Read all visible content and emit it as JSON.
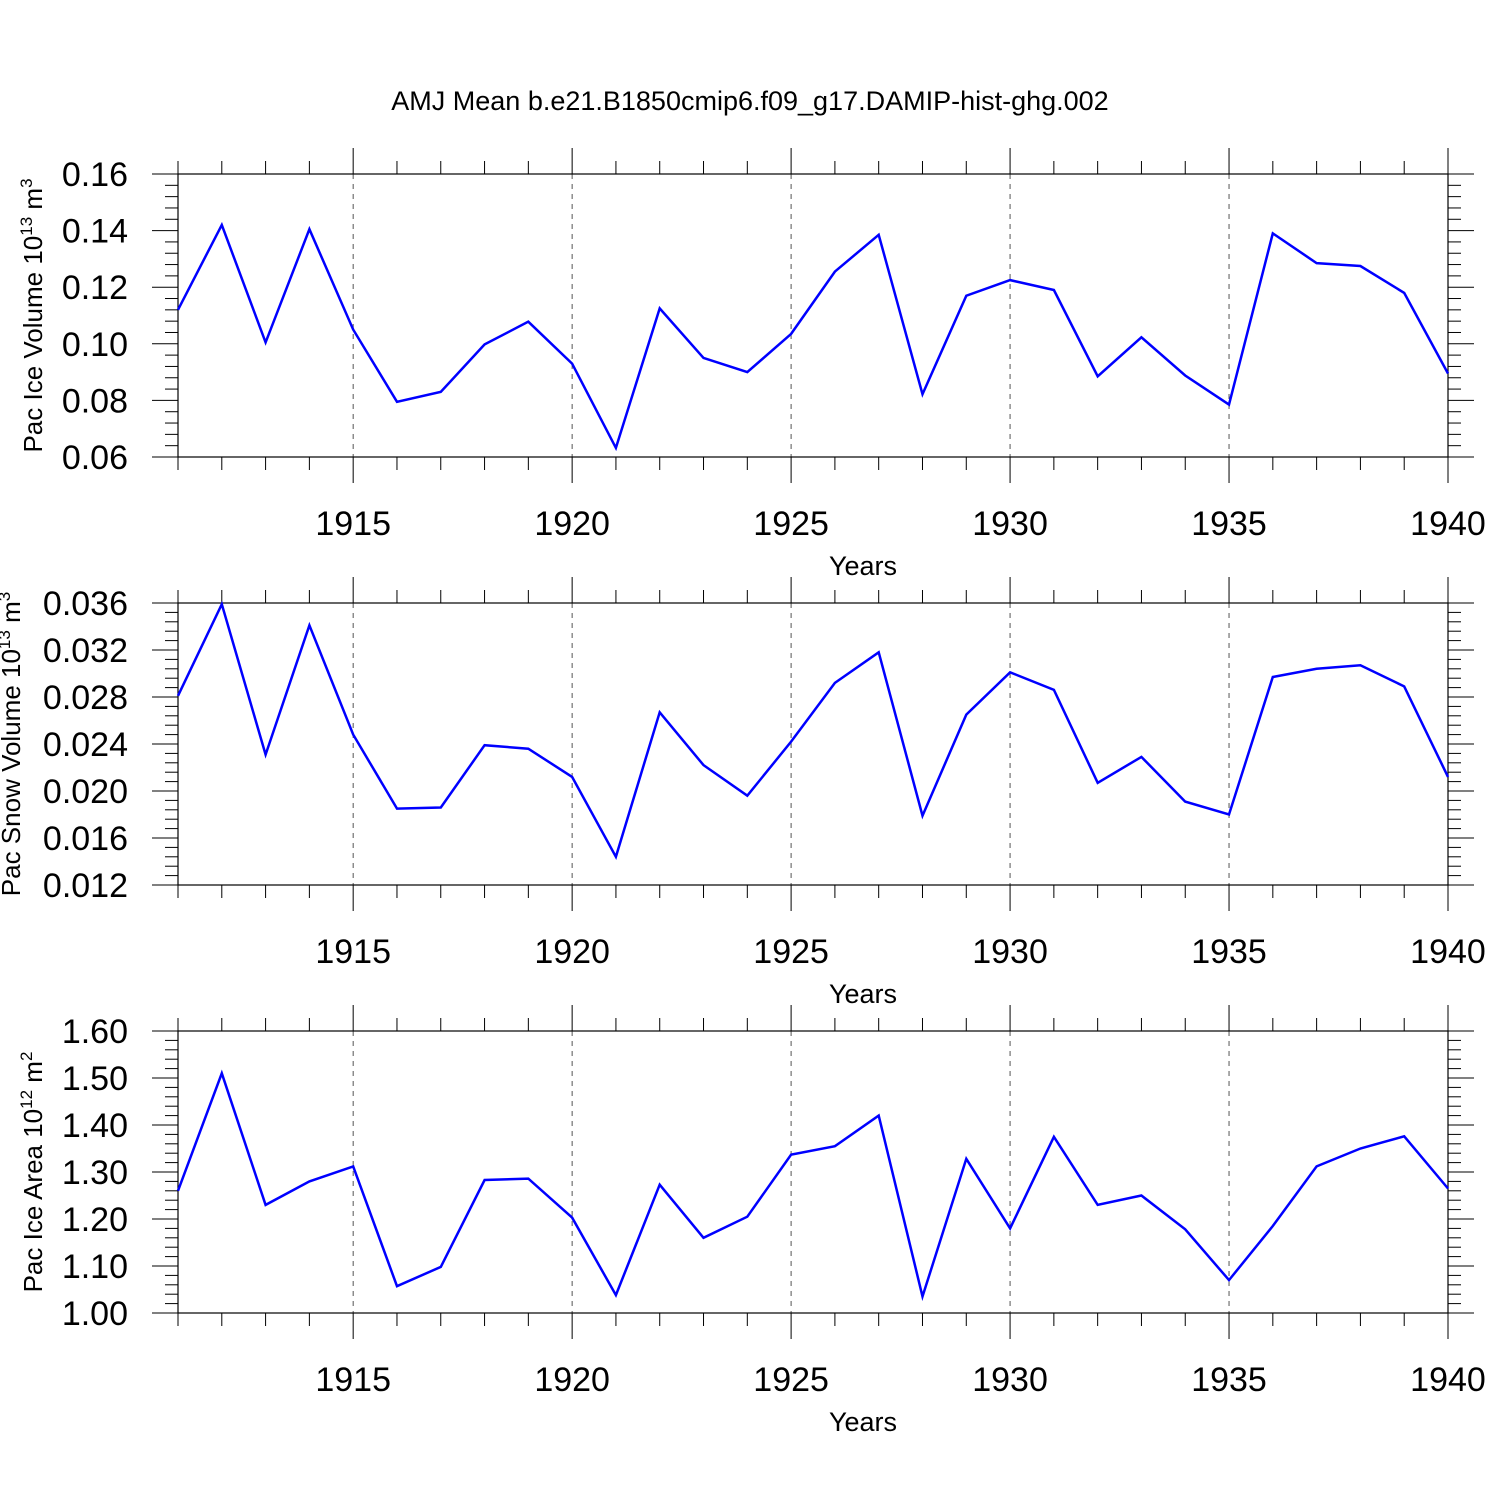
{
  "chart_data": {
    "type": "line",
    "title": "AMJ Mean b.e21.B1850cmip6.f09_g17.DAMIP-hist-ghg.002",
    "x": [
      1911,
      1912,
      1913,
      1914,
      1915,
      1916,
      1917,
      1918,
      1919,
      1920,
      1921,
      1922,
      1923,
      1924,
      1925,
      1926,
      1927,
      1928,
      1929,
      1930,
      1931,
      1932,
      1933,
      1934,
      1935,
      1936,
      1937,
      1938,
      1939,
      1940
    ],
    "xlim": [
      1911,
      1940
    ],
    "xticks": [
      1915,
      1920,
      1925,
      1930,
      1935,
      1940
    ],
    "xlabel": "Years",
    "color": "#0000ff",
    "panels": [
      {
        "ylabel": "Pac Ice Volume 10",
        "ylabel_exp": "13",
        "ylabel_unit": " m",
        "ylabel_unit_exp": "3",
        "ylim": [
          0.06,
          0.16
        ],
        "yticks": [
          "0.06",
          "0.08",
          "0.10",
          "0.12",
          "0.14",
          "0.16"
        ],
        "ytick_values": [
          0.06,
          0.08,
          0.1,
          0.12,
          0.14,
          0.16
        ],
        "values": [
          0.112,
          0.142,
          0.1005,
          0.1405,
          0.105,
          0.0795,
          0.083,
          0.0998,
          0.1078,
          0.093,
          0.0632,
          0.1125,
          0.095,
          0.09,
          0.1035,
          0.1255,
          0.1385,
          0.0822,
          0.117,
          0.1225,
          0.119,
          0.0885,
          0.1023,
          0.0888,
          0.0785,
          0.139,
          0.1285,
          0.1275,
          0.118,
          0.0895
        ]
      },
      {
        "ylabel": "Pac Snow Volume 10",
        "ylabel_exp": "13",
        "ylabel_unit": " m",
        "ylabel_unit_exp": "3",
        "ylim": [
          0.012,
          0.036
        ],
        "yticks": [
          "0.012",
          "0.016",
          "0.020",
          "0.024",
          "0.028",
          "0.032",
          "0.036"
        ],
        "ytick_values": [
          0.012,
          0.016,
          0.02,
          0.024,
          0.028,
          0.032,
          0.036
        ],
        "values": [
          0.0281,
          0.0359,
          0.0231,
          0.0341,
          0.0248,
          0.0185,
          0.0186,
          0.0239,
          0.0236,
          0.0212,
          0.0144,
          0.0267,
          0.0222,
          0.0196,
          0.0242,
          0.0292,
          0.0318,
          0.0179,
          0.0265,
          0.0301,
          0.0286,
          0.0207,
          0.0229,
          0.0191,
          0.018,
          0.0297,
          0.0304,
          0.0307,
          0.0289,
          0.0212
        ]
      },
      {
        "ylabel": "Pac Ice Area 10",
        "ylabel_exp": "12",
        "ylabel_unit": " m",
        "ylabel_unit_exp": "2",
        "ylim": [
          1.0,
          1.6
        ],
        "yticks": [
          "1.00",
          "1.10",
          "1.20",
          "1.30",
          "1.40",
          "1.50",
          "1.60"
        ],
        "ytick_values": [
          1.0,
          1.1,
          1.2,
          1.3,
          1.4,
          1.5,
          1.6
        ],
        "values": [
          1.26,
          1.51,
          1.23,
          1.28,
          1.312,
          1.057,
          1.098,
          1.283,
          1.286,
          1.203,
          1.038,
          1.273,
          1.16,
          1.205,
          1.337,
          1.355,
          1.42,
          1.035,
          1.328,
          1.18,
          1.375,
          1.23,
          1.25,
          1.178,
          1.07,
          1.185,
          1.312,
          1.35,
          1.376,
          1.265
        ]
      }
    ]
  }
}
